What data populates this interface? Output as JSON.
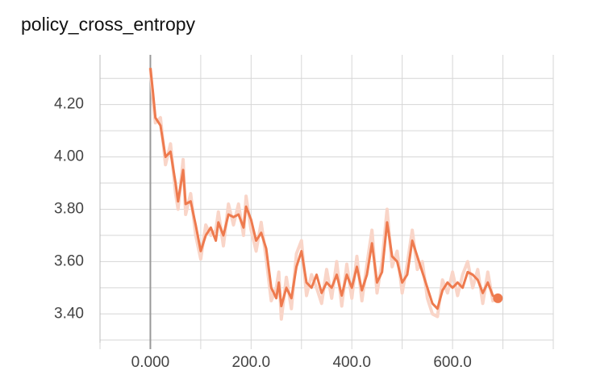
{
  "chart_data": {
    "type": "line",
    "title": "policy_cross_entropy",
    "x": [
      0,
      5,
      10,
      20,
      30,
      40,
      50,
      55,
      65,
      70,
      80,
      90,
      100,
      110,
      120,
      130,
      135,
      145,
      155,
      165,
      175,
      185,
      190,
      200,
      210,
      220,
      230,
      240,
      250,
      255,
      260,
      270,
      280,
      290,
      300,
      310,
      320,
      330,
      340,
      350,
      360,
      370,
      380,
      390,
      400,
      410,
      420,
      430,
      440,
      450,
      460,
      470,
      480,
      490,
      500,
      510,
      520,
      530,
      540,
      550,
      560,
      570,
      580,
      590,
      600,
      610,
      620,
      630,
      640,
      650,
      660,
      670,
      680,
      690
    ],
    "series": [
      {
        "color": "#f9d5c8",
        "width": 4,
        "values": [
          4.34,
          4.22,
          4.13,
          4.15,
          3.97,
          4.05,
          3.86,
          3.8,
          3.99,
          3.78,
          3.86,
          3.7,
          3.61,
          3.74,
          3.7,
          3.72,
          3.79,
          3.66,
          3.82,
          3.74,
          3.82,
          3.7,
          3.85,
          3.72,
          3.64,
          3.75,
          3.61,
          3.45,
          3.5,
          3.56,
          3.38,
          3.54,
          3.42,
          3.63,
          3.68,
          3.47,
          3.55,
          3.5,
          3.44,
          3.57,
          3.46,
          3.6,
          3.43,
          3.59,
          3.46,
          3.62,
          3.45,
          3.59,
          3.72,
          3.48,
          3.6,
          3.8,
          3.58,
          3.64,
          3.48,
          3.59,
          3.72,
          3.57,
          3.6,
          3.46,
          3.4,
          3.39,
          3.53,
          3.48,
          3.56,
          3.47,
          3.55,
          3.6,
          3.5,
          3.57,
          3.44,
          3.56,
          3.45,
          3.46
        ]
      },
      {
        "color": "#ee7a4e",
        "width": 3,
        "values": [
          4.34,
          4.25,
          4.15,
          4.12,
          4.0,
          4.02,
          3.9,
          3.83,
          3.95,
          3.82,
          3.83,
          3.74,
          3.64,
          3.7,
          3.73,
          3.68,
          3.75,
          3.7,
          3.78,
          3.77,
          3.78,
          3.73,
          3.81,
          3.76,
          3.68,
          3.71,
          3.65,
          3.5,
          3.46,
          3.52,
          3.43,
          3.5,
          3.46,
          3.58,
          3.64,
          3.52,
          3.5,
          3.55,
          3.48,
          3.52,
          3.5,
          3.55,
          3.47,
          3.55,
          3.5,
          3.58,
          3.49,
          3.55,
          3.67,
          3.52,
          3.56,
          3.75,
          3.62,
          3.6,
          3.52,
          3.55,
          3.68,
          3.62,
          3.56,
          3.5,
          3.44,
          3.42,
          3.49,
          3.52,
          3.5,
          3.52,
          3.5,
          3.56,
          3.55,
          3.53,
          3.48,
          3.52,
          3.47,
          3.46
        ]
      }
    ],
    "xlim": [
      -100,
      800
    ],
    "xticks": [
      {
        "value": 0,
        "label": "0.000"
      },
      {
        "value": 200,
        "label": "200.0"
      },
      {
        "value": 400,
        "label": "400.0"
      },
      {
        "value": 600,
        "label": "600.0"
      }
    ],
    "xgrid": [
      -100,
      100,
      300,
      500,
      700,
      800
    ],
    "ylim": [
      3.29,
      4.39
    ],
    "yticks": [
      {
        "value": 3.4,
        "label": "3.40"
      },
      {
        "value": 3.6,
        "label": "3.60"
      },
      {
        "value": 3.8,
        "label": "3.80"
      },
      {
        "value": 4.0,
        "label": "4.00"
      },
      {
        "value": 4.2,
        "label": "4.20"
      }
    ],
    "ygrid": [
      3.3,
      3.5,
      3.7,
      3.9,
      4.1,
      4.3
    ],
    "grid": true
  }
}
